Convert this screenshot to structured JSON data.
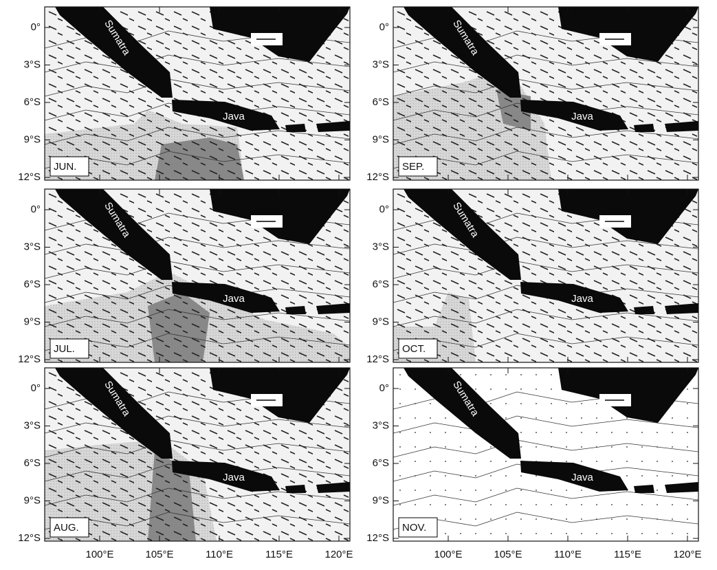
{
  "panels": [
    {
      "month": "JUN.",
      "sumatra": "Sumatra",
      "java": "Java"
    },
    {
      "month": "JUL.",
      "sumatra": "Sumatra",
      "java": "Java"
    },
    {
      "month": "AUG.",
      "sumatra": "Sumatra",
      "java": "Java"
    },
    {
      "month": "SEP.",
      "sumatra": "Sumatra",
      "java": "Java"
    },
    {
      "month": "OCT.",
      "sumatra": "Sumatra",
      "java": "Java"
    },
    {
      "month": "NOV.",
      "sumatra": "Sumatra",
      "java": "Java"
    }
  ],
  "lat_ticks": [
    "0°",
    "3°S",
    "6°S",
    "9°S",
    "12°S"
  ],
  "lon_ticks": [
    "100°E",
    "105°E",
    "110°E",
    "115°E",
    "120°E"
  ]
}
